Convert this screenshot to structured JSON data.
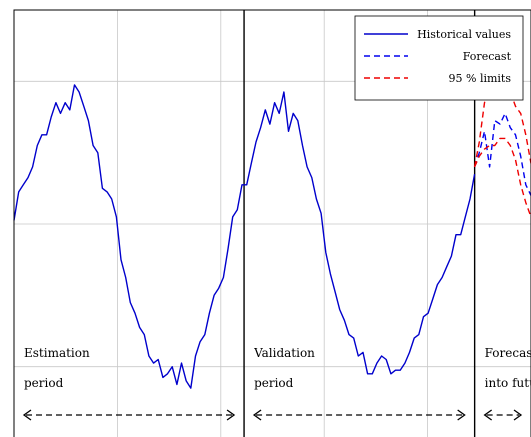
{
  "chart_data": {
    "type": "line",
    "title": "",
    "xlabel": "",
    "ylabel": "",
    "grid": true,
    "legend_position": "top-right",
    "xlim": [
      0,
      10
    ],
    "ylim": [
      -3,
      3
    ],
    "colors": {
      "historical": "#0000cc",
      "forecast": "#0000ee",
      "limits": "#ee0000",
      "grid": "#c8c8c8",
      "axis": "#000000"
    },
    "legend": [
      {
        "label": "Historical values",
        "style": "solid",
        "color": "#0000cc"
      },
      {
        "label": "Forecast",
        "style": "dashed",
        "color": "#0000ee"
      },
      {
        "label": "95 % limits",
        "style": "dashed",
        "color": "#ee0000"
      }
    ],
    "regions": [
      {
        "line1": "Estimation",
        "line2": "period"
      },
      {
        "line1": "Validation",
        "line2": "period"
      },
      {
        "line1": "Forecast",
        "line2": "into future"
      }
    ],
    "series": [
      {
        "name": "Historical values",
        "x": [
          0.0,
          0.09,
          0.18,
          0.27,
          0.36,
          0.45,
          0.54,
          0.63,
          0.72,
          0.81,
          0.9,
          0.99,
          1.08,
          1.17,
          1.26,
          1.35,
          1.44,
          1.53,
          1.62,
          1.71,
          1.8,
          1.89,
          1.98,
          2.07,
          2.16,
          2.25,
          2.34,
          2.43,
          2.52,
          2.61,
          2.7,
          2.79,
          2.88,
          2.97,
          3.06,
          3.15,
          3.24,
          3.33,
          3.42,
          3.51,
          3.6,
          3.69,
          3.78,
          3.87,
          3.96,
          4.05,
          4.14,
          4.23,
          4.32,
          4.41,
          4.5,
          4.59,
          4.68,
          4.77,
          4.86,
          4.95,
          5.04,
          5.13,
          5.22,
          5.31,
          5.4,
          5.49,
          5.58,
          5.67,
          5.76,
          5.85,
          5.94,
          6.03,
          6.12,
          6.21,
          6.3,
          6.39,
          6.48,
          6.57,
          6.66,
          6.75,
          6.84,
          6.93,
          7.02,
          7.11,
          7.2,
          7.29,
          7.38,
          7.47,
          7.56,
          7.65,
          7.74,
          7.83,
          7.92,
          8.01,
          8.1,
          8.19,
          8.28,
          8.37,
          8.46,
          8.55,
          8.64,
          8.73,
          8.82,
          8.91
        ],
        "y": [
          0.05,
          0.45,
          0.55,
          0.65,
          0.8,
          1.1,
          1.25,
          1.25,
          1.5,
          1.7,
          1.55,
          1.7,
          1.6,
          1.95,
          1.85,
          1.65,
          1.45,
          1.1,
          1.0,
          0.5,
          0.45,
          0.35,
          0.1,
          -0.5,
          -0.75,
          -1.1,
          -1.25,
          -1.45,
          -1.55,
          -1.85,
          -1.95,
          -1.9,
          -2.15,
          -2.1,
          -2.0,
          -2.25,
          -1.95,
          -2.2,
          -2.3,
          -1.85,
          -1.65,
          -1.55,
          -1.25,
          -1.0,
          -0.9,
          -0.75,
          -0.35,
          0.1,
          0.2,
          0.55,
          0.55,
          0.85,
          1.15,
          1.35,
          1.6,
          1.4,
          1.7,
          1.55,
          1.85,
          1.3,
          1.55,
          1.45,
          1.1,
          0.8,
          0.65,
          0.35,
          0.15,
          -0.4,
          -0.7,
          -0.95,
          -1.2,
          -1.35,
          -1.55,
          -1.6,
          -1.85,
          -1.8,
          -2.1,
          -2.1,
          -1.95,
          -1.85,
          -1.9,
          -2.1,
          -2.05,
          -2.05,
          -1.95,
          -1.8,
          -1.6,
          -1.55,
          -1.3,
          -1.25,
          -1.05,
          -0.85,
          -0.75,
          -0.6,
          -0.45,
          -0.15,
          -0.15,
          0.1,
          0.35,
          0.7
        ]
      },
      {
        "name": "Forecast",
        "x": [
          8.91,
          9.0,
          9.1,
          9.2,
          9.3,
          9.4,
          9.5,
          9.6,
          9.7,
          9.8,
          9.9,
          10.0
        ],
        "y": [
          0.8,
          1.0,
          1.3,
          0.8,
          1.45,
          1.4,
          1.55,
          1.35,
          1.25,
          0.95,
          0.55,
          0.4
        ]
      },
      {
        "name": "95 % limits (upper)",
        "x": [
          8.91,
          9.0,
          9.1,
          9.2,
          9.3,
          9.4,
          9.5,
          9.6,
          9.7,
          9.8,
          9.9,
          10.0
        ],
        "y": [
          0.8,
          1.15,
          1.7,
          1.9,
          1.95,
          1.95,
          2.0,
          1.85,
          1.65,
          1.55,
          1.25,
          0.85
        ]
      },
      {
        "name": "95 % limits (lower)",
        "x": [
          8.91,
          9.0,
          9.1,
          9.2,
          9.3,
          9.4,
          9.5,
          9.6,
          9.7,
          9.8,
          9.9,
          10.0
        ],
        "y": [
          0.8,
          0.95,
          1.05,
          1.1,
          1.1,
          1.2,
          1.2,
          1.1,
          0.9,
          0.55,
          0.3,
          0.1
        ]
      }
    ]
  }
}
